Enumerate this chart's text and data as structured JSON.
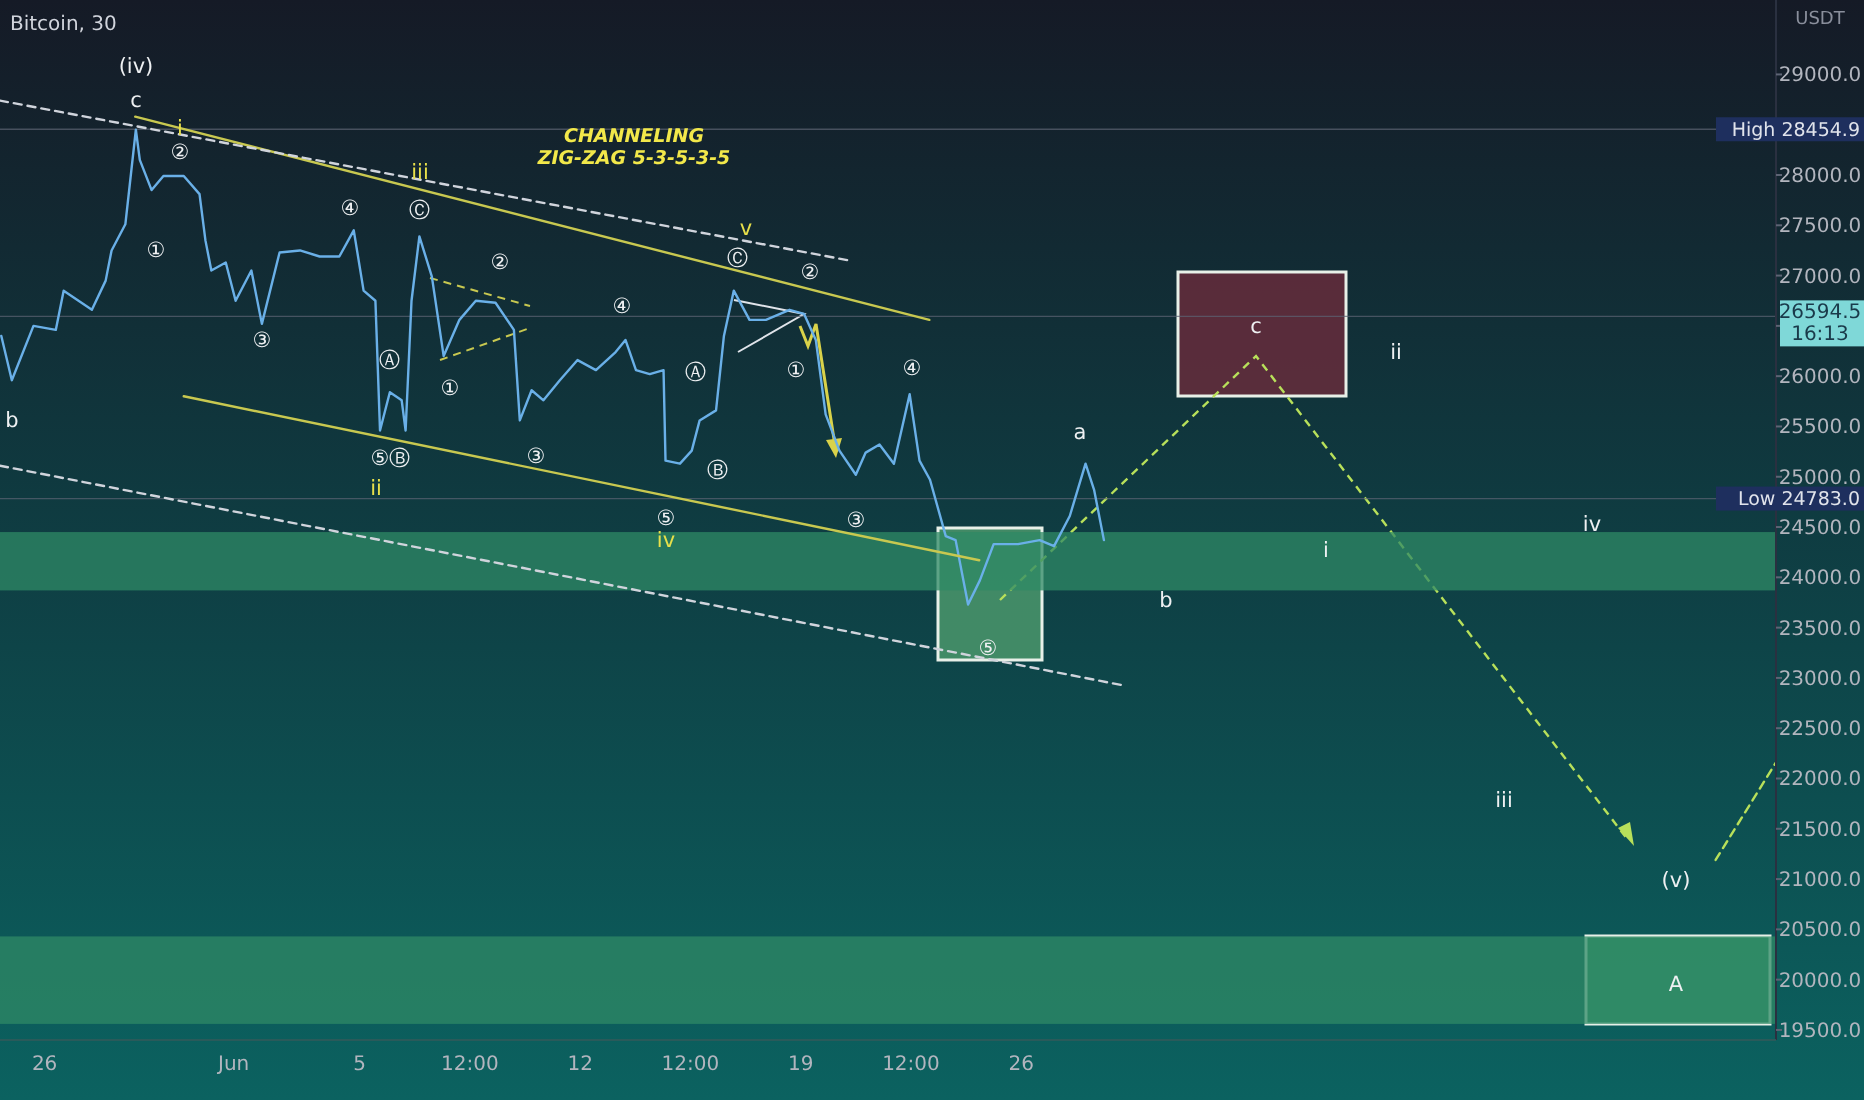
{
  "chart_data": {
    "type": "line",
    "title": "Bitcoin, 30",
    "ylabel": "USDT",
    "xlim": [
      "--05-24T14:00",
      "--07-19T23:00"
    ],
    "xticks": [
      {
        "value": "--05-26",
        "label": "26"
      },
      {
        "value": "--06-01",
        "label": "Jun"
      },
      {
        "value": "--06-05",
        "label": "5"
      },
      {
        "value": "--06-08T12:00",
        "label": "12:00"
      },
      {
        "value": "--06-12",
        "label": "12"
      },
      {
        "value": "--06-15T12:00",
        "label": "12:00"
      },
      {
        "value": "--06-19",
        "label": "19"
      },
      {
        "value": "--06-22T12:00",
        "label": "12:00"
      },
      {
        "value": "--06-26",
        "label": "26"
      }
    ],
    "ylim": [
      19400,
      29740
    ],
    "yticks": [
      {
        "value": 19500,
        "label": "19500.0"
      },
      {
        "value": 20000,
        "label": "20000.0"
      },
      {
        "value": 20500,
        "label": "20500.0"
      },
      {
        "value": 21000,
        "label": "21000.0"
      },
      {
        "value": 21500,
        "label": "21500.0"
      },
      {
        "value": 22000,
        "label": "22000.0"
      },
      {
        "value": 22500,
        "label": "22500.0"
      },
      {
        "value": 23000,
        "label": "23000.0"
      },
      {
        "value": 23500,
        "label": "23500.0"
      },
      {
        "value": 24000,
        "label": "24000.0"
      },
      {
        "value": 24500,
        "label": "24500.0"
      },
      {
        "value": 25000,
        "label": "25000.0"
      },
      {
        "value": 25500,
        "label": "25500.0"
      },
      {
        "value": 26000,
        "label": "26000.0"
      },
      {
        "value": 26500,
        "label": null
      },
      {
        "value": 27000,
        "label": "27000.0"
      },
      {
        "value": 27500,
        "label": "27500.0"
      },
      {
        "value": 28000,
        "label": "28000.0"
      },
      {
        "value": 28500,
        "label": null
      },
      {
        "value": 29000,
        "label": "29000.0"
      }
    ],
    "series": [
      {
        "color": "#6ab0e8",
        "x": [
          "--05-24T15:00",
          "--05-24T23:00",
          "--05-25T15:30",
          "--05-26T08:30",
          "--05-26T14:30",
          "--05-27T12:00",
          "--05-27T22:30",
          "--05-28T03:00",
          "--05-28T13:30",
          "--05-28T21:30",
          "--05-29T00:30",
          "--05-29T09:30",
          "--05-29T18:30",
          "--05-30T10:00",
          "--05-30T22:00",
          "--05-31T02:30",
          "--05-31T07:00",
          "--05-31T18:00",
          "--06-01T01:30",
          "--06-01T13:30",
          "--06-01T21:30",
          "--06-02T11:00",
          "--06-03T02:30",
          "--06-03T17:30",
          "--06-04T08:30",
          "--06-04T19:30",
          "--06-05T03:00",
          "--06-05T12:00",
          "--06-05T15:30",
          "--06-05T23:00",
          "--06-06T08:00",
          "--06-06T11:00",
          "--06-06T15:30",
          "--06-06T21:30",
          "--06-07T07:00",
          "--06-07T16:00",
          "--06-08T04:00",
          "--06-08T16:30",
          "--06-09T07:30",
          "--06-09T21:30",
          "--06-10T02:00",
          "--06-10T11:00",
          "--06-10T20:00",
          "--06-11T08:30",
          "--06-11T22:00",
          "--06-12T12:00",
          "--06-13T03:00",
          "--06-13T10:30",
          "--06-13T18:30",
          "--06-14T05:00",
          "--06-14T15:30",
          "--06-14T17:00",
          "--06-15T04:00",
          "--06-15T13:00",
          "--06-15T19:00",
          "--06-16T07:30",
          "--06-16T13:30",
          "--06-16T21:00",
          "--06-17T09:00",
          "--06-17T21:30",
          "--06-18T15:30",
          "--06-19T02:30",
          "--06-19T11:30",
          "--06-19T19:00",
          "--06-20T05:30",
          "--06-20T18:00",
          "--06-21T01:30",
          "--06-21T12:00",
          "--06-21T23:00",
          "--06-22T11:00",
          "--06-22T18:30",
          "--06-23T02:30",
          "--06-23T14:30",
          "--06-23T22:00",
          "--06-24T07:30",
          "--06-24T16:30",
          "--06-25T03:00",
          "--06-25T21:30",
          "--06-26T14:00",
          "--06-27T01:00",
          "--06-27T13:00",
          "--06-28T01:00",
          "--06-28T07:30",
          "--06-28T15:00"
        ],
        "values": [
          26400,
          25960,
          26500,
          26460,
          26850,
          26660,
          26950,
          27250,
          27510,
          28450,
          28150,
          27850,
          27990,
          27990,
          27810,
          27350,
          27050,
          27130,
          26750,
          27050,
          26520,
          27230,
          27250,
          27190,
          27190,
          27450,
          26850,
          26750,
          25460,
          25840,
          25760,
          25460,
          26750,
          27390,
          26990,
          26200,
          26560,
          26750,
          26730,
          26460,
          25560,
          25860,
          25760,
          25960,
          26160,
          26060,
          26240,
          26360,
          26060,
          26020,
          26060,
          25160,
          25130,
          25260,
          25560,
          25660,
          26400,
          26850,
          26560,
          26560,
          26660,
          26620,
          26360,
          25620,
          25260,
          25020,
          25240,
          25320,
          25130,
          25820,
          25160,
          24970,
          24410,
          24370,
          23730,
          23970,
          24330,
          24330,
          24370,
          24310,
          24610,
          25130,
          24870,
          24370
        ]
      },
      {
        "color": "#c8c850",
        "x": [
          "--05-28T21:00",
          "--06-23T02:00"
        ],
        "values": [
          28580,
          26560
        ]
      },
      {
        "color": "#c8c850",
        "x": [
          "--05-30T10:00",
          "--06-24T16:00"
        ],
        "values": [
          25800,
          24170
        ]
      },
      {
        "color": "#d0d4dc",
        "line_style": "dashed",
        "x": [
          "--05-24T14:00",
          "--06-20T13:00"
        ],
        "values": [
          28740,
          27150
        ]
      },
      {
        "color": "#d0d4dc",
        "line_style": "dashed",
        "x": [
          "--05-24T14:00",
          "--06-29T08:00"
        ],
        "values": [
          25110,
          22920
        ]
      },
      {
        "color": "#b8e05a",
        "line_style": "dashed",
        "x": [
          "--07-18T01:00",
          "--07-19T23:00"
        ],
        "values": [
          21190,
          22160
        ]
      }
    ],
    "line_style": "solid",
    "bands": [
      {
        "axis": "y",
        "from": 23870,
        "to": 24450,
        "color": "#2f8a66"
      },
      {
        "axis": "y",
        "from": 19560,
        "to": 20430,
        "color": "#2f8a66"
      }
    ],
    "ref_lines": [
      {
        "axis": "y",
        "value": 28454.9,
        "label": "High 28454.9"
      },
      {
        "axis": "y",
        "value": 26594.5,
        "label": "26594.5"
      },
      {
        "axis": "y",
        "value": 24783.0,
        "label": "Low 24783.0"
      }
    ],
    "annotations": [
      "CHANNELING",
      "ZIG-ZAG 5-3-5-3-5",
      "16:13",
      "(iv)",
      "c",
      "i",
      "②",
      "①",
      "③",
      "④",
      "iii",
      "Ⓒ",
      "②",
      "①",
      "Ⓐ",
      "⑤",
      "Ⓑ",
      "ii",
      "③",
      "④",
      "Ⓐ",
      "Ⓑ",
      "⑤",
      "iv",
      "v",
      "Ⓒ",
      "②",
      "①",
      "③",
      "④",
      "⑤",
      "a",
      "b",
      "c",
      "ii",
      "i",
      "iv",
      "iii",
      "(v)",
      "A",
      "b"
    ]
  }
}
